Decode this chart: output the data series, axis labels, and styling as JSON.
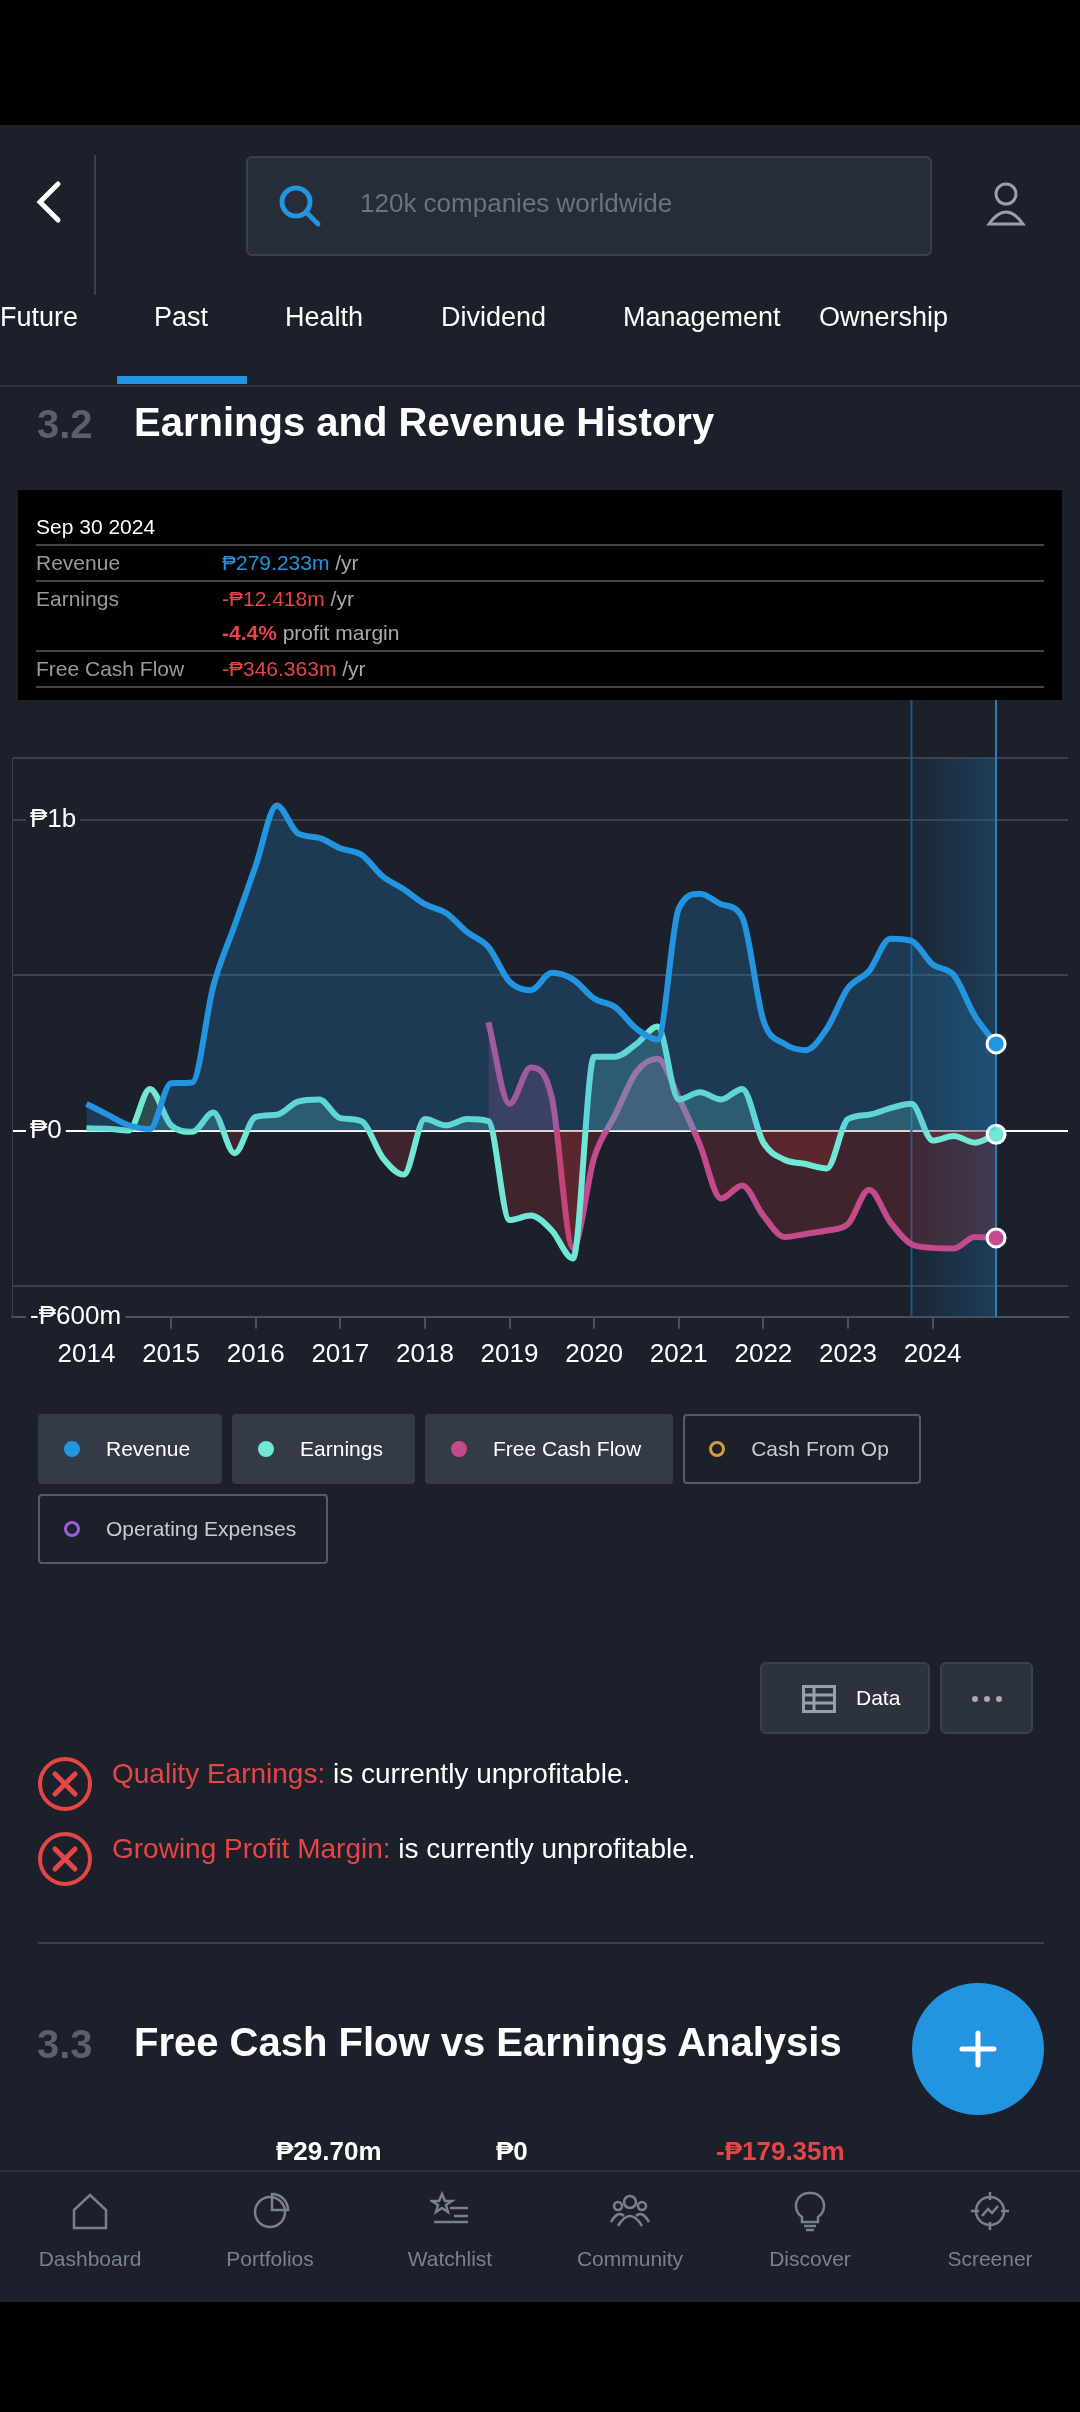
{
  "chart_data": {
    "type": "area",
    "title": "Earnings and Revenue History",
    "x": [
      2014,
      2014.25,
      2014.5,
      2014.75,
      2015,
      2015.25,
      2015.5,
      2015.75,
      2016,
      2016.25,
      2016.5,
      2016.75,
      2017,
      2017.25,
      2017.5,
      2017.75,
      2018,
      2018.25,
      2018.5,
      2018.75,
      2019,
      2019.25,
      2019.5,
      2019.75,
      2020,
      2020.25,
      2020.5,
      2020.75,
      2021,
      2021.25,
      2021.5,
      2021.75,
      2022,
      2022.25,
      2022.5,
      2022.75,
      2023,
      2023.25,
      2023.5,
      2023.75,
      2024,
      2024.25,
      2024.5,
      2024.75
    ],
    "series": [
      {
        "name": "Revenue",
        "color": "#2394df",
        "values": [
          86000000,
          51000000,
          17000000,
          5000000,
          152000000,
          155000000,
          466000000,
          660000000,
          853000000,
          1047000000,
          957000000,
          943000000,
          909000000,
          888000000,
          819000000,
          777000000,
          729000000,
          701000000,
          639000000,
          591000000,
          480000000,
          452000000,
          508000000,
          487000000,
          425000000,
          397000000,
          328000000,
          293000000,
          715000000,
          763000000,
          729000000,
          687000000,
          355000000,
          279000000,
          259000000,
          328000000,
          459000000,
          514000000,
          618000000,
          611000000,
          535000000,
          501000000,
          369000000,
          279000000
        ]
      },
      {
        "name": "Earnings",
        "color": "#71e7d6",
        "values": [
          7000000,
          6000000,
          0,
          134000000,
          17000000,
          -4000000,
          58000000,
          -73000000,
          44000000,
          51000000,
          93000000,
          100000000,
          40000000,
          30000000,
          -87000000,
          -142000000,
          37000000,
          17000000,
          37000000,
          30000000,
          -288000000,
          -274000000,
          -322000000,
          -412000000,
          238000000,
          238000000,
          279000000,
          335000000,
          100000000,
          123000000,
          100000000,
          134000000,
          -39000000,
          -94000000,
          -108000000,
          -122000000,
          37000000,
          51000000,
          72000000,
          86000000,
          -32000000,
          -18000000,
          -39000000,
          -12000000
        ]
      },
      {
        "name": "Free Cash Flow",
        "color": "#c34a8c",
        "values": [
          null,
          null,
          null,
          null,
          null,
          null,
          null,
          null,
          null,
          null,
          null,
          null,
          null,
          null,
          null,
          null,
          null,
          null,
          null,
          349000000,
          86000000,
          203000000,
          106000000,
          -378000000,
          -87000000,
          51000000,
          189000000,
          231000000,
          106000000,
          -46000000,
          -219000000,
          -177000000,
          -274000000,
          -343000000,
          -333000000,
          -322000000,
          -301000000,
          -191000000,
          -295000000,
          -366000000,
          -378000000,
          -380000000,
          -343000000,
          -346000000
        ]
      },
      {
        "name": "Cash From Op",
        "color": "#d99a3e",
        "values": [
          null,
          null,
          null,
          null,
          null,
          null,
          null,
          null,
          null,
          null,
          null,
          null,
          null,
          null,
          null,
          null,
          null,
          null,
          null,
          null,
          null,
          null,
          null,
          null,
          null,
          null,
          null,
          null,
          null,
          null,
          null,
          null,
          null,
          null,
          null,
          null,
          null,
          null,
          null,
          null,
          null,
          null,
          null,
          null
        ]
      },
      {
        "name": "Operating Expenses",
        "color": "#9b5fd8",
        "values": [
          null,
          null,
          null,
          null,
          null,
          null,
          null,
          null,
          null,
          null,
          null,
          null,
          null,
          null,
          null,
          null,
          null,
          null,
          null,
          null,
          null,
          null,
          null,
          null,
          null,
          null,
          null,
          null,
          null,
          null,
          null,
          null,
          null,
          null,
          null,
          null,
          null,
          null,
          null,
          null,
          null,
          null,
          null,
          null
        ]
      }
    ],
    "xlim": [
      2013.12,
      2025.6
    ],
    "xticks": [
      2014,
      2015,
      2016,
      2017,
      2018,
      2019,
      2020,
      2021,
      2022,
      2023,
      2024
    ],
    "ylim": [
      -600000000,
      1200000000
    ],
    "yticks": [
      {
        "value": -600000000,
        "label": "-₱600m"
      },
      {
        "value": -500000000,
        "label": null
      },
      {
        "value": 0,
        "label": "₱0"
      },
      {
        "value": 500000000,
        "label": null
      },
      {
        "value": 1000000000,
        "label": "₱1b"
      },
      {
        "value": 1200000000,
        "label": null
      }
    ],
    "grid": "y",
    "legend": "bottom",
    "bands": [
      {
        "axis": "x",
        "from": 2023.75,
        "to": 2024.75,
        "color": "#1f5a85"
      }
    ],
    "ref_lines": [
      {
        "axis": "x",
        "value": 2023.75,
        "color": "#1f5a85"
      },
      {
        "axis": "x",
        "value": 2024.75,
        "color": "#2f7fb8"
      }
    ],
    "annotations": [
      "Sep 30 2024",
      "₱279.233m /yr",
      "-₱12.418m /yr",
      "-4.4% profit margin",
      "-₱346.363m /yr",
      "Quality Earnings: is currently unprofitable.",
      "Growing Profit Margin: is currently unprofitable.",
      "3.2",
      "3.3",
      "Free Cash Flow vs Earnings Analysis",
      "₱29.70m",
      "₱0",
      "-₱179.35m",
      "Data",
      "120k companies worldwide",
      "Future",
      "Past",
      "Health",
      "Dividend",
      "Management",
      "Ownership",
      "Dashboard",
      "Portfolios",
      "Watchlist",
      "Community",
      "Discover",
      "Screener"
    ]
  }
}
